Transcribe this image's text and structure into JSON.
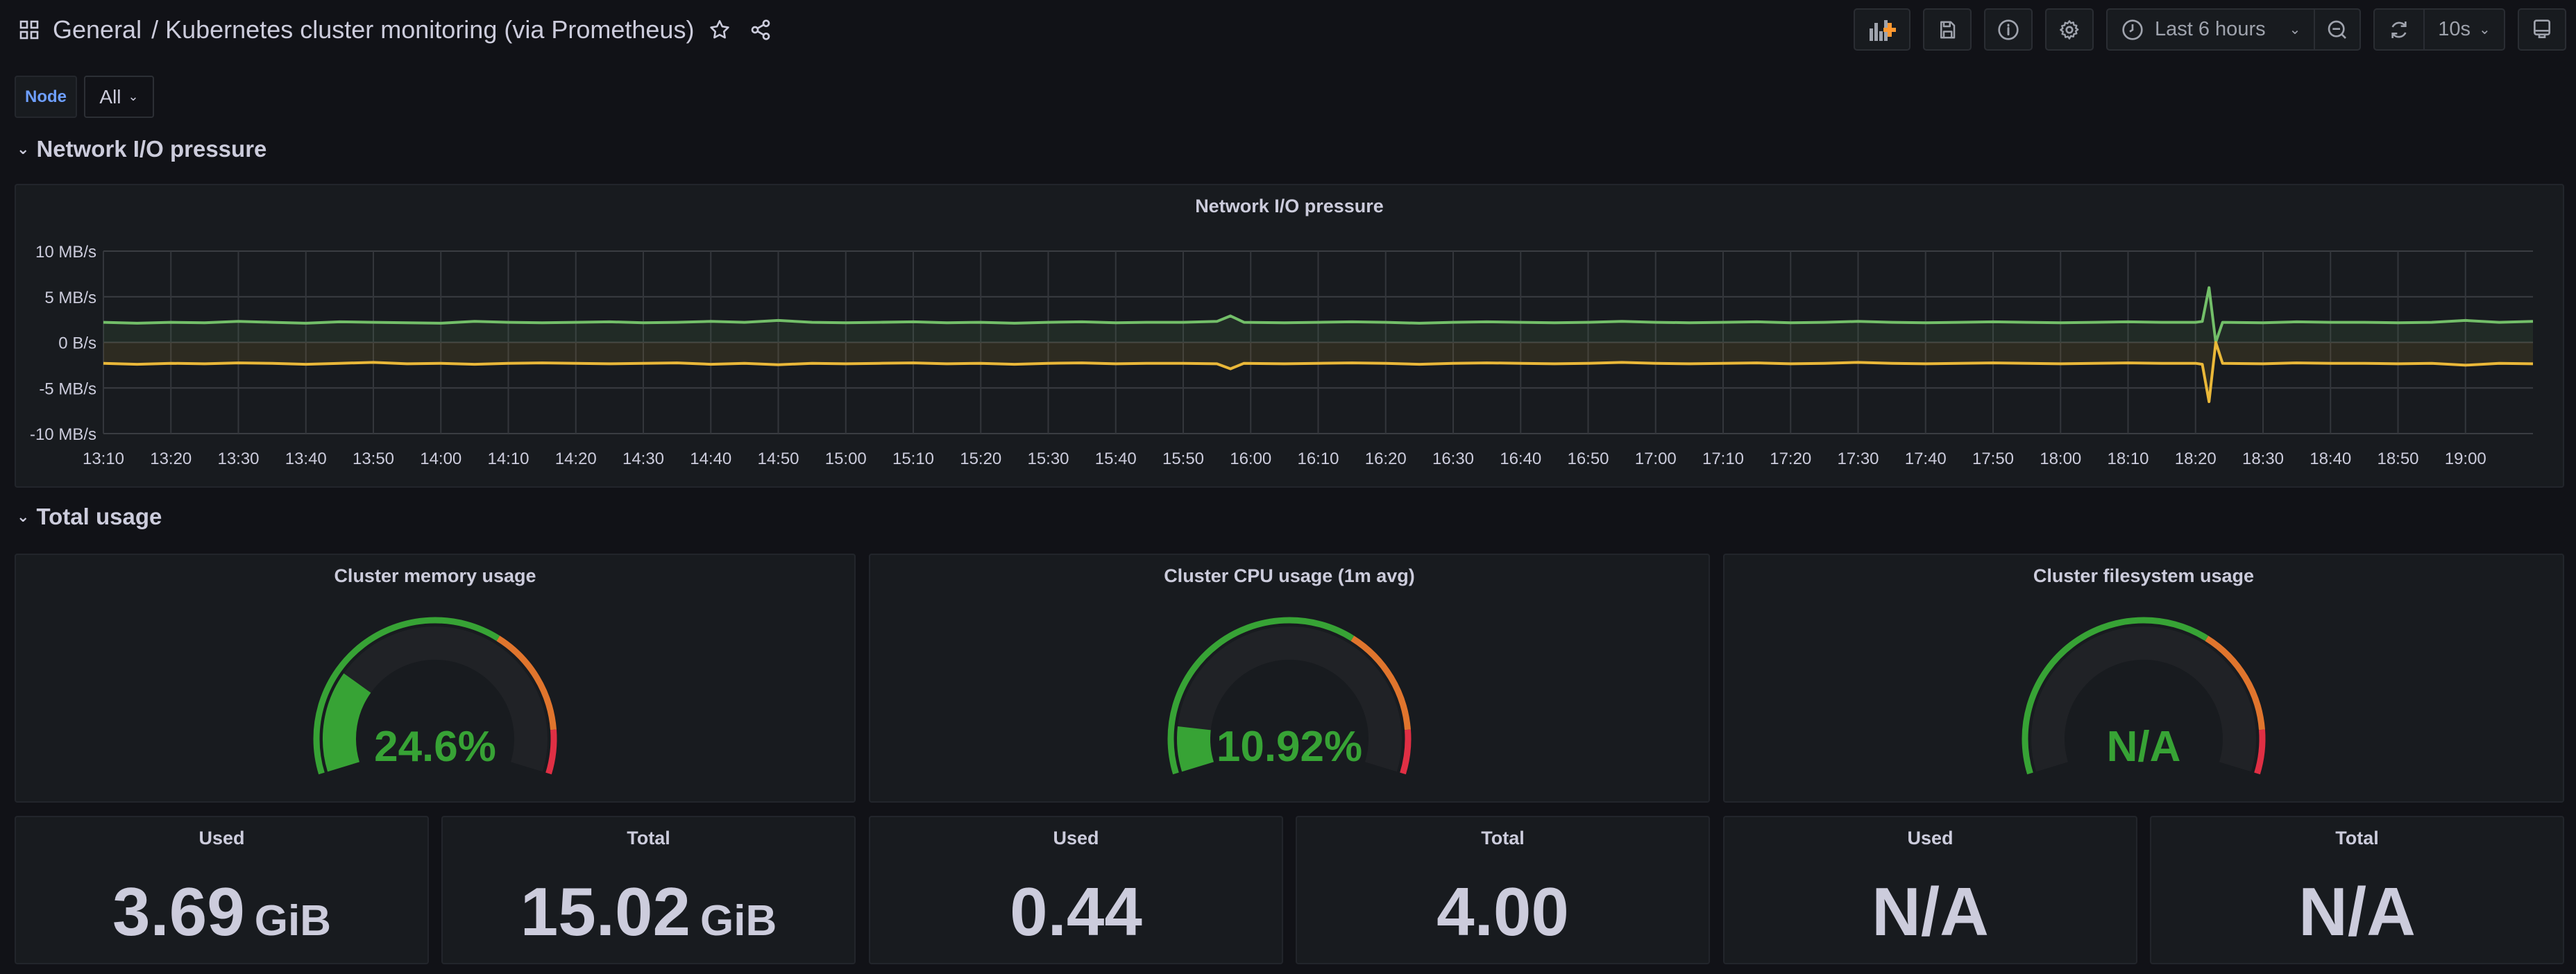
{
  "header": {
    "folder": "General",
    "separator": "/",
    "title": "Kubernetes cluster monitoring (via Prometheus)",
    "icons": [
      "dashboards-grid-icon",
      "star-icon",
      "share-icon"
    ]
  },
  "toolbar": {
    "time_range": "Last 6 hours",
    "refresh_interval": "10s",
    "icons": [
      "add-panel-icon",
      "save-icon",
      "info-icon",
      "settings-icon",
      "clock-icon",
      "zoom-out-icon",
      "refresh-icon",
      "tv-mode-icon"
    ],
    "accent": "#ff9830"
  },
  "variables": [
    {
      "label": "Node",
      "value": "All"
    }
  ],
  "rows": [
    {
      "title": "Network I/O pressure"
    },
    {
      "title": "Total usage"
    }
  ],
  "network_panel": {
    "title": "Network I/O pressure",
    "chart_data": {
      "type": "area",
      "xlim": [
        "13:10",
        "19:10"
      ],
      "ylim": [
        -10,
        10
      ],
      "y_ticks": [
        "10 MB/s",
        "5 MB/s",
        "0 B/s",
        "-5 MB/s",
        "-10 MB/s"
      ],
      "y_tick_values": [
        10,
        5,
        0,
        -5,
        -10
      ],
      "x_ticks": [
        "13:10",
        "13:20",
        "13:30",
        "13:40",
        "13:50",
        "14:00",
        "14:10",
        "14:20",
        "14:30",
        "14:40",
        "14:50",
        "15:00",
        "15:10",
        "15:20",
        "15:30",
        "15:40",
        "15:50",
        "16:00",
        "16:10",
        "16:20",
        "16:30",
        "16:40",
        "16:50",
        "17:00",
        "17:10",
        "17:20",
        "17:30",
        "17:40",
        "17:50",
        "18:00",
        "18:10",
        "18:20",
        "18:30",
        "18:40",
        "18:50",
        "19:00"
      ],
      "grid": true,
      "legend": "none",
      "series": [
        {
          "color": "#73bf69",
          "points": [
            [
              "13:10",
              2.2
            ],
            [
              "13:15",
              2.1
            ],
            [
              "13:20",
              2.2
            ],
            [
              "13:25",
              2.15
            ],
            [
              "13:30",
              2.3
            ],
            [
              "13:35",
              2.2
            ],
            [
              "13:40",
              2.1
            ],
            [
              "13:45",
              2.25
            ],
            [
              "13:50",
              2.2
            ],
            [
              "13:55",
              2.15
            ],
            [
              "14:00",
              2.1
            ],
            [
              "14:05",
              2.3
            ],
            [
              "14:10",
              2.2
            ],
            [
              "14:15",
              2.15
            ],
            [
              "14:20",
              2.2
            ],
            [
              "14:25",
              2.25
            ],
            [
              "14:30",
              2.15
            ],
            [
              "14:35",
              2.2
            ],
            [
              "14:40",
              2.3
            ],
            [
              "14:45",
              2.2
            ],
            [
              "14:50",
              2.4
            ],
            [
              "14:55",
              2.2
            ],
            [
              "15:00",
              2.15
            ],
            [
              "15:05",
              2.2
            ],
            [
              "15:10",
              2.25
            ],
            [
              "15:15",
              2.15
            ],
            [
              "15:20",
              2.2
            ],
            [
              "15:25",
              2.1
            ],
            [
              "15:30",
              2.2
            ],
            [
              "15:35",
              2.25
            ],
            [
              "15:40",
              2.15
            ],
            [
              "15:45",
              2.2
            ],
            [
              "15:50",
              2.2
            ],
            [
              "15:55",
              2.3
            ],
            [
              "15:57",
              2.9
            ],
            [
              "15:59",
              2.2
            ],
            [
              "16:05",
              2.15
            ],
            [
              "16:10",
              2.2
            ],
            [
              "16:15",
              2.25
            ],
            [
              "16:20",
              2.2
            ],
            [
              "16:25",
              2.1
            ],
            [
              "16:30",
              2.2
            ],
            [
              "16:35",
              2.25
            ],
            [
              "16:40",
              2.2
            ],
            [
              "16:45",
              2.15
            ],
            [
              "16:50",
              2.2
            ],
            [
              "16:55",
              2.3
            ],
            [
              "17:00",
              2.2
            ],
            [
              "17:05",
              2.15
            ],
            [
              "17:10",
              2.2
            ],
            [
              "17:15",
              2.25
            ],
            [
              "17:20",
              2.15
            ],
            [
              "17:25",
              2.2
            ],
            [
              "17:30",
              2.3
            ],
            [
              "17:35",
              2.2
            ],
            [
              "17:40",
              2.15
            ],
            [
              "17:45",
              2.2
            ],
            [
              "17:50",
              2.25
            ],
            [
              "17:55",
              2.2
            ],
            [
              "18:00",
              2.15
            ],
            [
              "18:05",
              2.2
            ],
            [
              "18:10",
              2.25
            ],
            [
              "18:15",
              2.2
            ],
            [
              "18:20",
              2.2
            ],
            [
              "18:21",
              2.3
            ],
            [
              "18:22",
              6.0
            ],
            [
              "18:23",
              0.0
            ],
            [
              "18:24",
              2.2
            ],
            [
              "18:30",
              2.15
            ],
            [
              "18:35",
              2.25
            ],
            [
              "18:40",
              2.2
            ],
            [
              "18:45",
              2.2
            ],
            [
              "18:50",
              2.15
            ],
            [
              "18:55",
              2.2
            ],
            [
              "19:00",
              2.4
            ],
            [
              "19:05",
              2.2
            ],
            [
              "19:10",
              2.3
            ]
          ]
        },
        {
          "color": "#eab839",
          "points": [
            [
              "13:10",
              -2.3
            ],
            [
              "13:15",
              -2.4
            ],
            [
              "13:20",
              -2.3
            ],
            [
              "13:25",
              -2.35
            ],
            [
              "13:30",
              -2.25
            ],
            [
              "13:35",
              -2.3
            ],
            [
              "13:40",
              -2.4
            ],
            [
              "13:45",
              -2.3
            ],
            [
              "13:50",
              -2.2
            ],
            [
              "13:55",
              -2.35
            ],
            [
              "14:00",
              -2.3
            ],
            [
              "14:05",
              -2.4
            ],
            [
              "14:10",
              -2.3
            ],
            [
              "14:15",
              -2.25
            ],
            [
              "14:20",
              -2.3
            ],
            [
              "14:25",
              -2.35
            ],
            [
              "14:30",
              -2.3
            ],
            [
              "14:35",
              -2.25
            ],
            [
              "14:40",
              -2.4
            ],
            [
              "14:45",
              -2.3
            ],
            [
              "14:50",
              -2.45
            ],
            [
              "14:55",
              -2.3
            ],
            [
              "15:00",
              -2.35
            ],
            [
              "15:05",
              -2.3
            ],
            [
              "15:10",
              -2.25
            ],
            [
              "15:15",
              -2.35
            ],
            [
              "15:20",
              -2.3
            ],
            [
              "15:25",
              -2.4
            ],
            [
              "15:30",
              -2.3
            ],
            [
              "15:35",
              -2.25
            ],
            [
              "15:40",
              -2.35
            ],
            [
              "15:45",
              -2.3
            ],
            [
              "15:50",
              -2.3
            ],
            [
              "15:55",
              -2.35
            ],
            [
              "15:57",
              -2.9
            ],
            [
              "15:59",
              -2.3
            ],
            [
              "16:05",
              -2.35
            ],
            [
              "16:10",
              -2.3
            ],
            [
              "16:15",
              -2.25
            ],
            [
              "16:20",
              -2.3
            ],
            [
              "16:25",
              -2.4
            ],
            [
              "16:30",
              -2.3
            ],
            [
              "16:35",
              -2.25
            ],
            [
              "16:40",
              -2.3
            ],
            [
              "16:45",
              -2.35
            ],
            [
              "16:50",
              -2.3
            ],
            [
              "16:55",
              -2.2
            ],
            [
              "17:00",
              -2.3
            ],
            [
              "17:05",
              -2.35
            ],
            [
              "17:10",
              -2.3
            ],
            [
              "17:15",
              -2.25
            ],
            [
              "17:20",
              -2.35
            ],
            [
              "17:25",
              -2.3
            ],
            [
              "17:30",
              -2.2
            ],
            [
              "17:35",
              -2.3
            ],
            [
              "17:40",
              -2.35
            ],
            [
              "17:45",
              -2.3
            ],
            [
              "17:50",
              -2.25
            ],
            [
              "17:55",
              -2.3
            ],
            [
              "18:00",
              -2.35
            ],
            [
              "18:05",
              -2.3
            ],
            [
              "18:10",
              -2.25
            ],
            [
              "18:15",
              -2.3
            ],
            [
              "18:20",
              -2.3
            ],
            [
              "18:21",
              -2.4
            ],
            [
              "18:22",
              -6.5
            ],
            [
              "18:23",
              0.0
            ],
            [
              "18:24",
              -2.3
            ],
            [
              "18:30",
              -2.35
            ],
            [
              "18:35",
              -2.25
            ],
            [
              "18:40",
              -2.3
            ],
            [
              "18:45",
              -2.3
            ],
            [
              "18:50",
              -2.35
            ],
            [
              "18:55",
              -2.3
            ],
            [
              "19:00",
              -2.5
            ],
            [
              "19:05",
              -2.3
            ],
            [
              "19:10",
              -2.35
            ]
          ]
        }
      ]
    }
  },
  "gauges": [
    {
      "title": "Cluster memory usage",
      "value_text": "24.6%",
      "percent": 24.6
    },
    {
      "title": "Cluster CPU usage (1m avg)",
      "value_text": "10.92%",
      "percent": 10.92
    },
    {
      "title": "Cluster filesystem usage",
      "value_text": "N/A",
      "percent": null
    }
  ],
  "gauge_thresholds": [
    {
      "from": 0,
      "color": "#37a335"
    },
    {
      "from": 65,
      "color": "#e0752d"
    },
    {
      "from": 90,
      "color": "#e02f44"
    }
  ],
  "stats": [
    {
      "title": "Used",
      "value": "3.69",
      "unit": "GiB"
    },
    {
      "title": "Total",
      "value": "15.02",
      "unit": "GiB"
    },
    {
      "title": "Used",
      "value": "0.44",
      "unit": ""
    },
    {
      "title": "Total",
      "value": "4.00",
      "unit": ""
    },
    {
      "title": "Used",
      "value": "N/A",
      "unit": ""
    },
    {
      "title": "Total",
      "value": "N/A",
      "unit": ""
    }
  ]
}
